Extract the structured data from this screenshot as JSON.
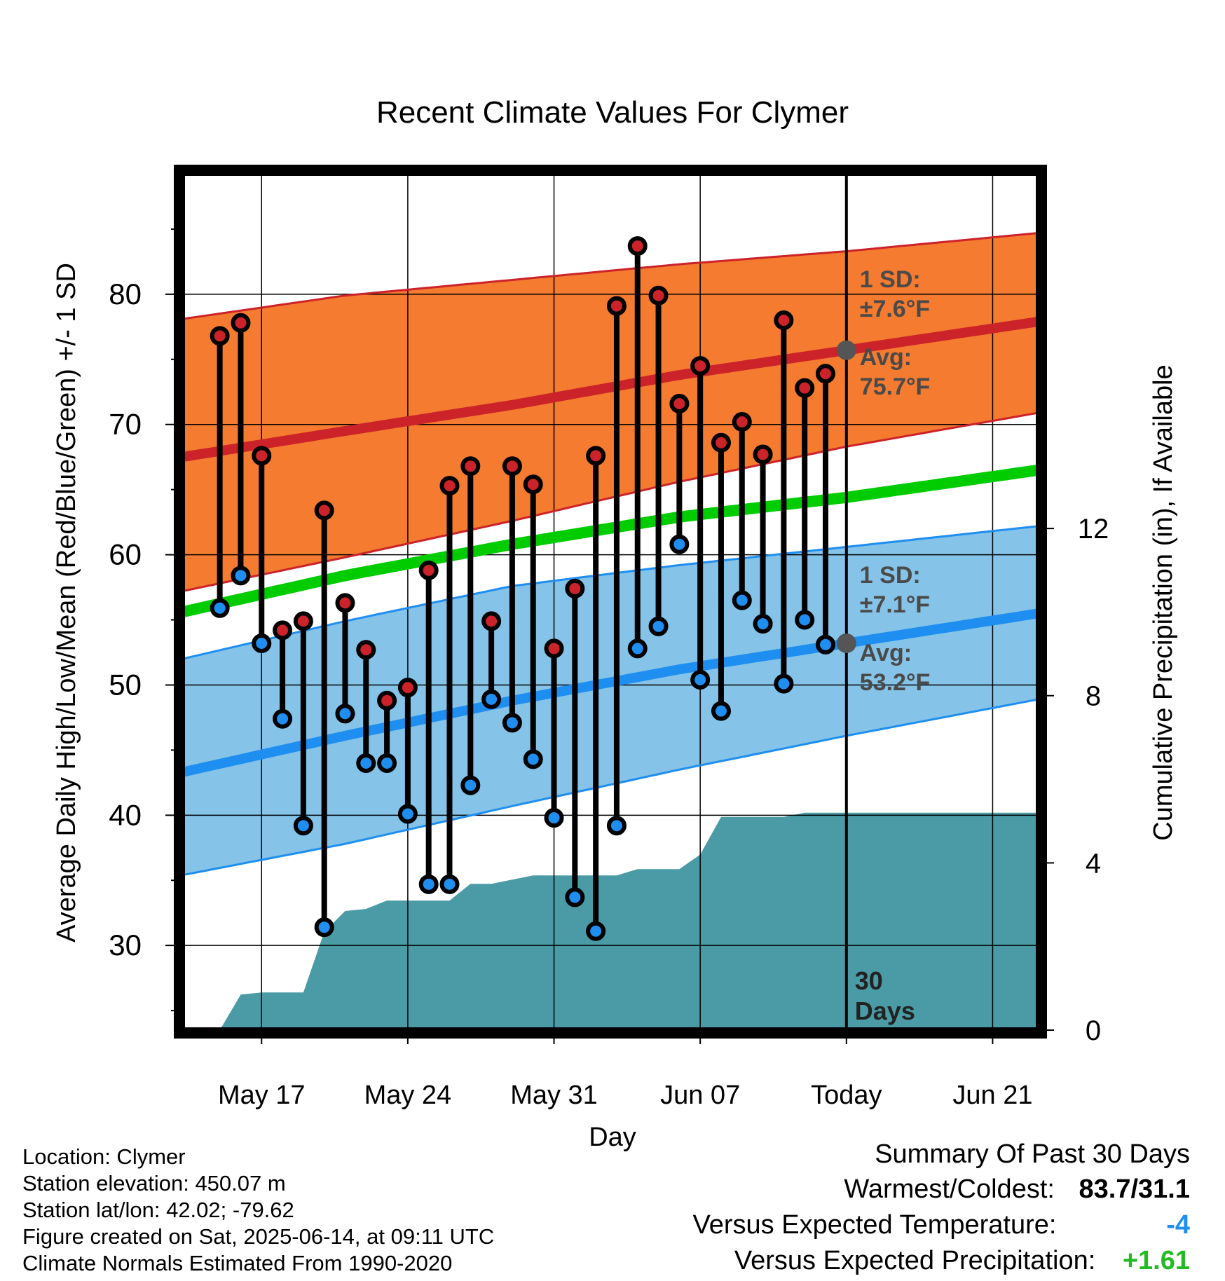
{
  "chart_data": {
    "type": "line",
    "title": "Recent Climate Values For Clymer",
    "xlabel": "Day",
    "ylabel_left": "Average Daily High/Low/Mean (Red/Blue/Green) +/- 1 SD",
    "ylabel_right": "Cumulative Precipitation (in), If Available",
    "x_tick_labels": [
      "May 17",
      "May 24",
      "May 31",
      "Jun 07",
      "Today",
      "Jun 21"
    ],
    "x_tick_days": [
      3,
      10,
      17,
      24,
      31,
      38
    ],
    "xlim": [
      -0.8,
      40.2
    ],
    "y_left_ticks": [
      30,
      40,
      50,
      60,
      70,
      80
    ],
    "ylim_left": [
      23.5,
      89.3
    ],
    "y_right_ticks": [
      0,
      4,
      8,
      12
    ],
    "ylim_right": [
      0,
      20.5
    ],
    "grid": true,
    "today_marker": {
      "day": 31,
      "label_line1": "30",
      "label_line2": "Days"
    },
    "observed_high": [
      76.8,
      77.8,
      67.6,
      54.2,
      54.9,
      63.4,
      56.3,
      52.7,
      48.8,
      49.8,
      58.8,
      65.3,
      66.8,
      54.9,
      66.8,
      65.4,
      52.8,
      57.4,
      67.6,
      79.1,
      83.7,
      79.9,
      71.6,
      74.5,
      68.6,
      70.2,
      67.7,
      78.0,
      72.8,
      73.9
    ],
    "observed_low": [
      55.9,
      58.4,
      53.2,
      47.4,
      39.2,
      31.4,
      47.8,
      44.0,
      44.0,
      40.1,
      34.7,
      34.7,
      42.3,
      48.9,
      47.1,
      44.3,
      39.8,
      33.7,
      31.1,
      39.2,
      52.8,
      54.5,
      60.8,
      50.4,
      48.0,
      56.5,
      54.7,
      50.1,
      55.0,
      53.1
    ],
    "normal_high_days": [
      -0.8,
      7,
      15,
      23,
      31,
      40.2
    ],
    "normal_high_mean": [
      67.5,
      69.5,
      71.5,
      73.8,
      75.7,
      77.9
    ],
    "normal_high_upper": [
      78.1,
      79.9,
      81.1,
      82.3,
      83.3,
      84.7
    ],
    "normal_high_lower": [
      57.2,
      59.8,
      62.6,
      65.6,
      68.3,
      70.9
    ],
    "normal_low_days": [
      -0.8,
      7,
      15,
      23,
      31,
      40.2
    ],
    "normal_low_mean": [
      43.3,
      46.1,
      48.8,
      51.2,
      53.2,
      55.5
    ],
    "normal_low_upper": [
      52.0,
      54.9,
      57.6,
      59.2,
      60.6,
      62.2
    ],
    "normal_low_lower": [
      35.4,
      37.8,
      40.7,
      43.5,
      46.1,
      48.9
    ],
    "normal_mean_days": [
      -0.8,
      7,
      15,
      23,
      31,
      40.2
    ],
    "normal_mean_values": [
      55.6,
      58.4,
      60.8,
      62.9,
      64.4,
      66.5
    ],
    "precip_days": [
      0,
      1,
      2,
      3,
      4,
      5,
      6,
      7,
      8,
      9,
      10,
      11,
      12,
      13,
      14,
      15,
      16,
      17,
      18,
      19,
      20,
      21,
      22,
      23,
      24,
      25,
      26,
      27,
      28,
      29,
      30,
      31,
      40.2
    ],
    "precip_cumulative": [
      0.0,
      0.0,
      0.85,
      0.9,
      0.9,
      0.9,
      2.35,
      2.85,
      2.9,
      3.1,
      3.1,
      3.1,
      3.1,
      3.5,
      3.5,
      3.6,
      3.7,
      3.7,
      3.7,
      3.7,
      3.7,
      3.85,
      3.85,
      3.85,
      4.2,
      5.1,
      5.1,
      5.1,
      5.1,
      5.2,
      5.2,
      5.2,
      5.2
    ],
    "annotations": {
      "high_sd_label": "1 SD:",
      "high_sd_value": "±7.6°F",
      "high_avg_label": "Avg:",
      "high_avg_value": "75.7°F",
      "low_sd_label": "1 SD:",
      "low_sd_value": "±7.1°F",
      "low_avg_label": "Avg:",
      "low_avg_value": "53.2°F"
    },
    "colors": {
      "high_band": "#f47b2f",
      "high_line": "#cc2229",
      "low_band": "#85c3e8",
      "low_line": "#1e8ef0",
      "mean_line": "#00cc00",
      "precip": "#4a9ba5",
      "high_dot": "#cc2229",
      "low_dot": "#1e8ef0",
      "avg_marker": "#555555"
    }
  },
  "footer": {
    "location": "Location: Clymer",
    "elevation": "Station elevation: 450.07 m",
    "latlon": "Station lat/lon: 42.02; -79.62",
    "created": "Figure created on Sat, 2025-06-14, at 09:11 UTC",
    "normals": "Climate Normals Estimated From 1990-2020"
  },
  "summary": {
    "title": "Summary Of Past 30 Days",
    "warm_cold_label": "Warmest/Coldest:",
    "warm_cold_value": "83.7/31.1",
    "temp_label": "Versus Expected Temperature:",
    "temp_value": "-4",
    "temp_color": "#1e8ef0",
    "precip_label": "Versus Expected Precipitation:",
    "precip_value": "+1.61",
    "precip_color": "#22bb22"
  }
}
